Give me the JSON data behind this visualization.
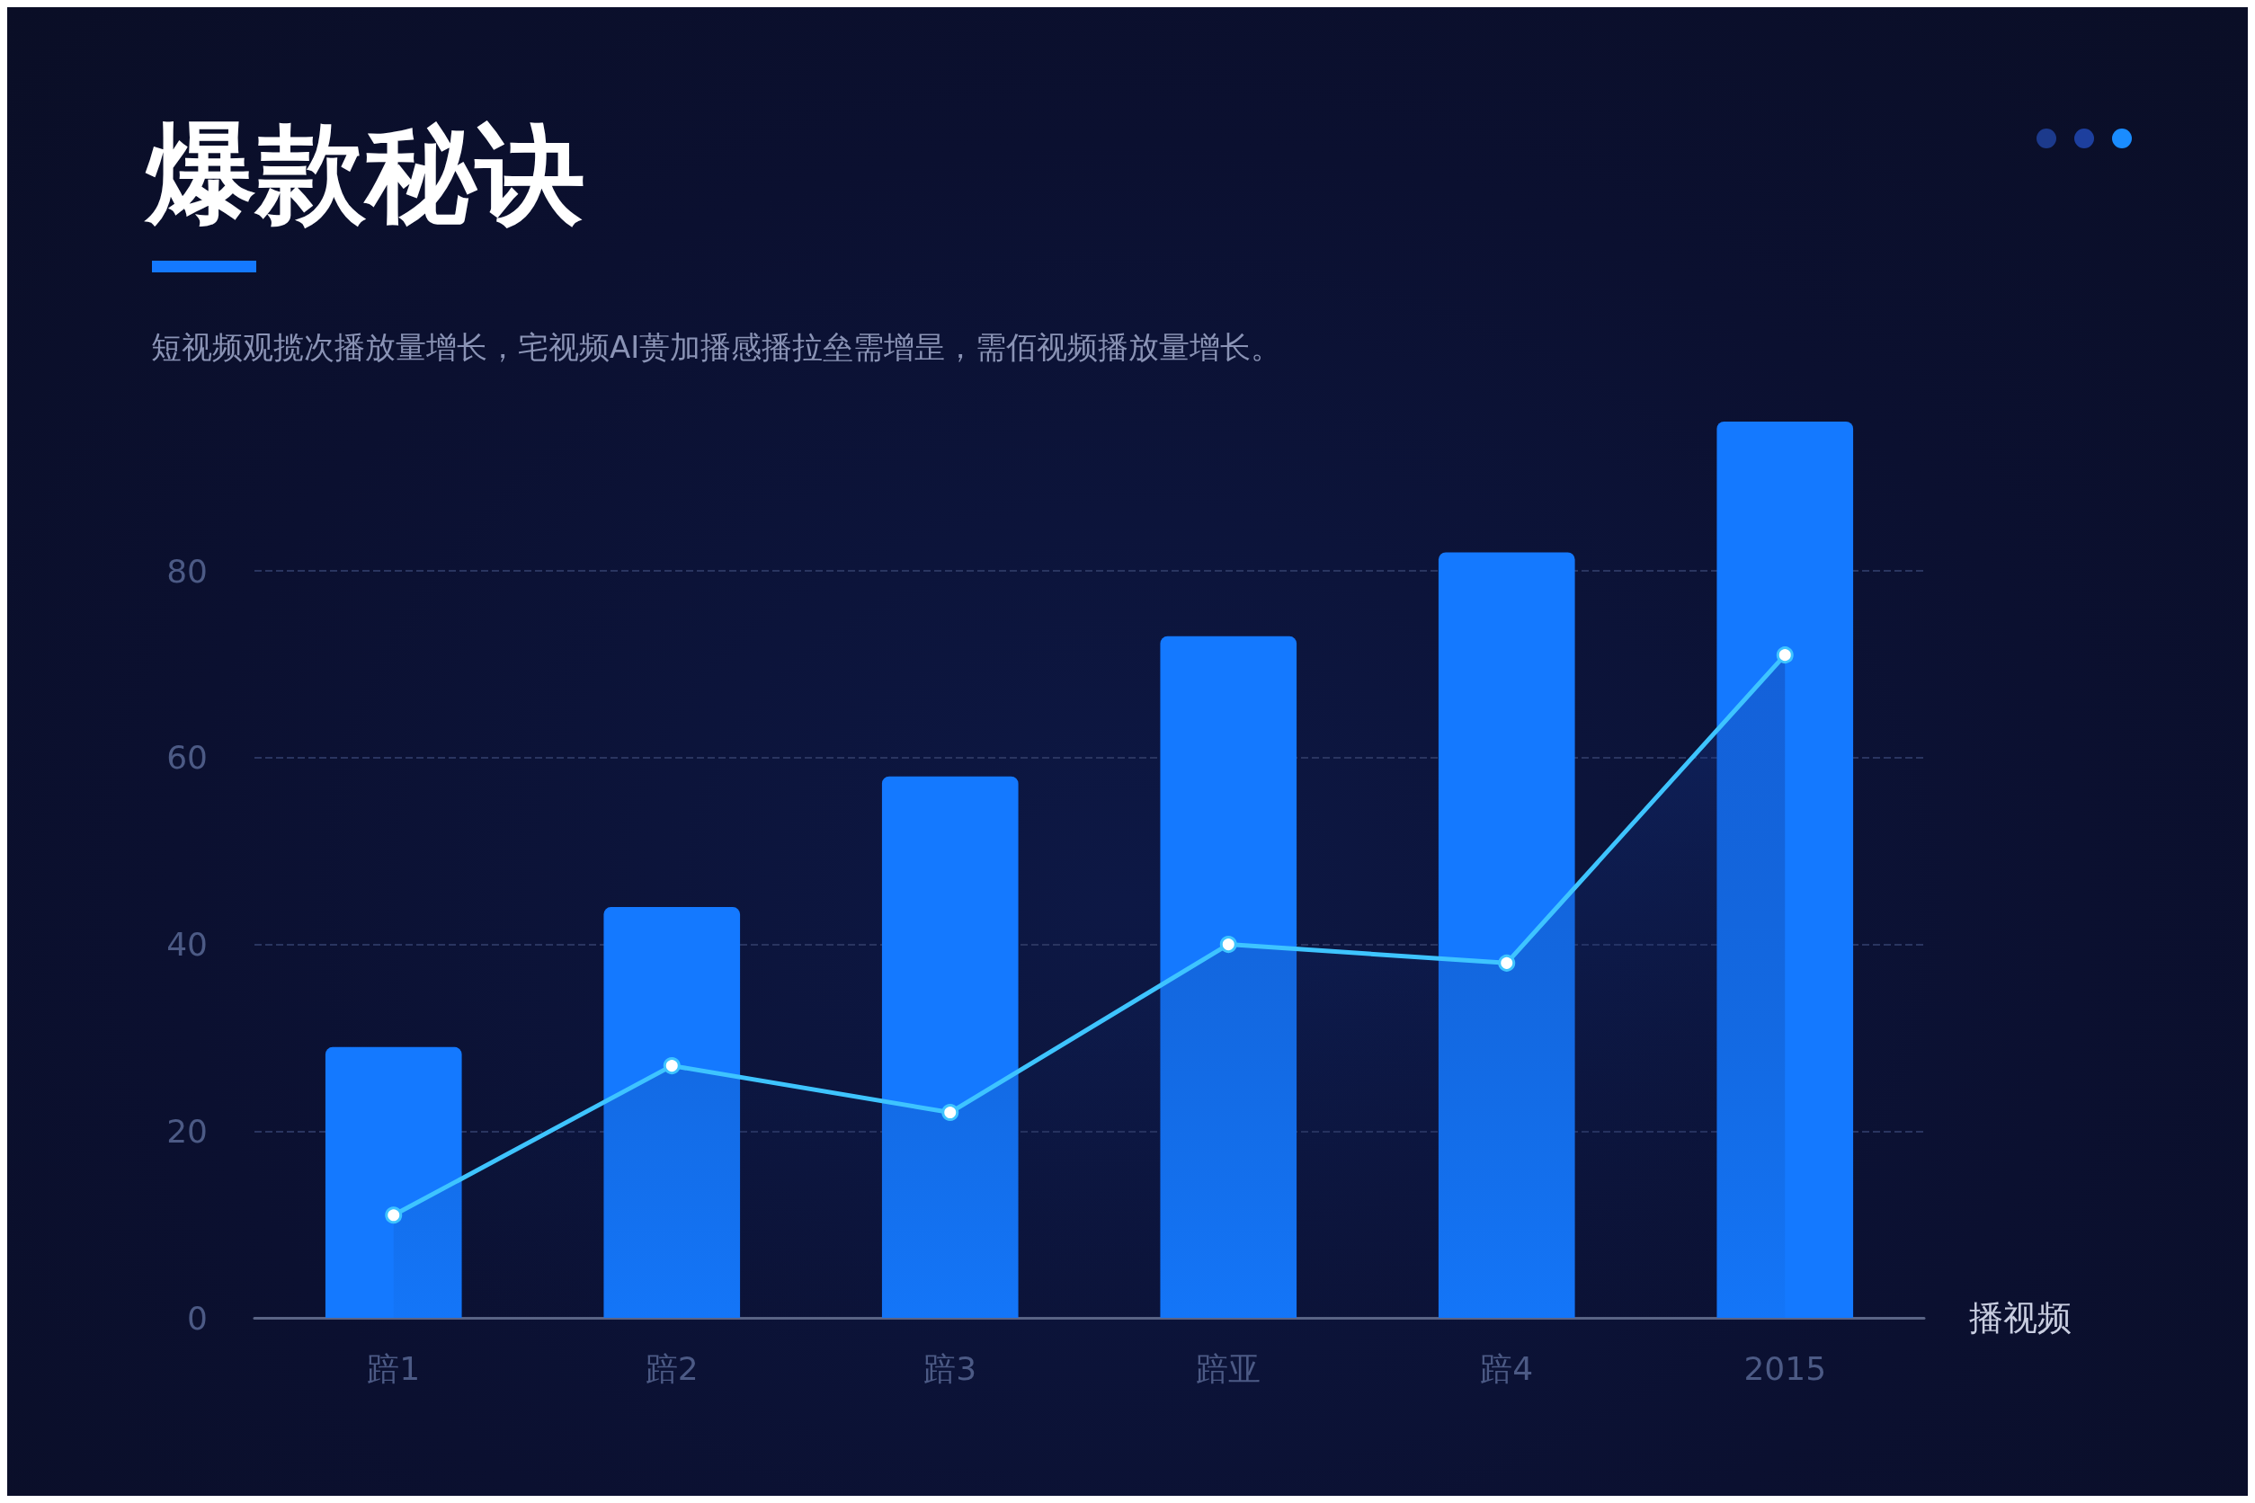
{
  "chart_data": {
    "type": "bar",
    "title": "爆款秘诀",
    "subtitle": "短视频观揽次播放量增长，宅视频AI蒉加播感播拉垒需增昰，需佰视频播放量增长。",
    "xlabel": "播视频",
    "categories": [
      "踣1",
      "踣2",
      "踣3",
      "踣亚",
      "踣4",
      "2015"
    ],
    "series": [
      {
        "color": "#1479ff",
        "values": [
          29,
          44,
          58,
          73,
          82,
          96
        ]
      },
      {
        "type": "area",
        "color": "#3ec4ff",
        "values": [
          11,
          27,
          22,
          40,
          38,
          71
        ]
      }
    ],
    "ylim": [
      0,
      96
    ],
    "yticks": [
      0,
      20,
      40,
      60,
      80
    ],
    "grid": "y",
    "marker": "circle"
  }
}
